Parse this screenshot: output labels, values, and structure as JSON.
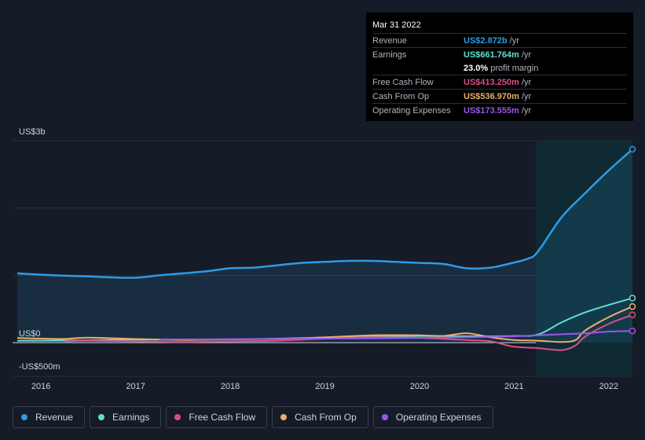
{
  "tooltip": {
    "date": "Mar 31 2022",
    "rows": [
      {
        "label": "Revenue",
        "value": "US$2.872b",
        "suffix": "/yr",
        "color": "#2f9ae4"
      },
      {
        "label": "Earnings",
        "value": "US$661.764m",
        "suffix": "/yr",
        "color": "#5ee0d1"
      },
      {
        "label": "",
        "value": "23.0%",
        "suffix": "profit margin",
        "color": "#ffffff"
      },
      {
        "label": "Free Cash Flow",
        "value": "US$413.250m",
        "suffix": "/yr",
        "color": "#d84f86"
      },
      {
        "label": "Cash From Op",
        "value": "US$536.970m",
        "suffix": "/yr",
        "color": "#e8b06b"
      },
      {
        "label": "Operating Expenses",
        "value": "US$173.555m",
        "suffix": "/yr",
        "color": "#9b56e8"
      }
    ]
  },
  "legend": [
    {
      "label": "Revenue",
      "color": "#2f9ae4"
    },
    {
      "label": "Earnings",
      "color": "#5ee0d1"
    },
    {
      "label": "Free Cash Flow",
      "color": "#d84f86"
    },
    {
      "label": "Cash From Op",
      "color": "#e8b06b"
    },
    {
      "label": "Operating Expenses",
      "color": "#9b56e8"
    }
  ],
  "chart_data": {
    "type": "line",
    "ylabels": {
      "top": "US$3b",
      "zero": "US$0",
      "bottom": "-US$500m"
    },
    "ylim": [
      -500,
      3000
    ],
    "xlim": [
      2015.7,
      2022.25
    ],
    "x_ticks": [
      "2016",
      "2017",
      "2018",
      "2019",
      "2020",
      "2021",
      "2022"
    ],
    "x_tick_values": [
      2016,
      2017,
      2018,
      2019,
      2020,
      2021,
      2022
    ],
    "forecast_start": 2021.23,
    "series": [
      {
        "name": "Revenue",
        "color": "#2f9ae4",
        "fill": true,
        "points": [
          [
            2015.75,
            1030
          ],
          [
            2016.0,
            1010
          ],
          [
            2016.25,
            995
          ],
          [
            2016.5,
            985
          ],
          [
            2016.75,
            970
          ],
          [
            2017.0,
            965
          ],
          [
            2017.25,
            1000
          ],
          [
            2017.5,
            1030
          ],
          [
            2017.75,
            1060
          ],
          [
            2018.0,
            1105
          ],
          [
            2018.25,
            1115
          ],
          [
            2018.5,
            1150
          ],
          [
            2018.75,
            1185
          ],
          [
            2019.0,
            1200
          ],
          [
            2019.25,
            1215
          ],
          [
            2019.5,
            1215
          ],
          [
            2019.75,
            1200
          ],
          [
            2020.0,
            1185
          ],
          [
            2020.25,
            1170
          ],
          [
            2020.5,
            1105
          ],
          [
            2020.75,
            1115
          ],
          [
            2021.0,
            1190
          ],
          [
            2021.15,
            1250
          ],
          [
            2021.25,
            1350
          ],
          [
            2021.5,
            1860
          ],
          [
            2021.75,
            2220
          ],
          [
            2022.0,
            2560
          ],
          [
            2022.25,
            2872
          ]
        ]
      },
      {
        "name": "Earnings",
        "color": "#5ee0d1",
        "points": [
          [
            2015.75,
            30
          ],
          [
            2016.0,
            30
          ],
          [
            2016.5,
            35
          ],
          [
            2017.0,
            45
          ],
          [
            2017.5,
            45
          ],
          [
            2018.0,
            50
          ],
          [
            2018.5,
            60
          ],
          [
            2019.0,
            75
          ],
          [
            2019.5,
            90
          ],
          [
            2020.0,
            100
          ],
          [
            2020.5,
            95
          ],
          [
            2021.0,
            100
          ],
          [
            2021.25,
            120
          ],
          [
            2021.5,
            300
          ],
          [
            2021.75,
            450
          ],
          [
            2022.0,
            560
          ],
          [
            2022.25,
            662
          ]
        ]
      },
      {
        "name": "Free Cash Flow",
        "color": "#d84f86",
        "points": [
          [
            2016.25,
            20
          ],
          [
            2016.5,
            30
          ],
          [
            2017.0,
            20
          ],
          [
            2017.5,
            10
          ],
          [
            2018.0,
            20
          ],
          [
            2018.5,
            30
          ],
          [
            2019.0,
            60
          ],
          [
            2019.5,
            80
          ],
          [
            2020.0,
            70
          ],
          [
            2020.5,
            40
          ],
          [
            2020.75,
            20
          ],
          [
            2021.0,
            -60
          ],
          [
            2021.25,
            -80
          ],
          [
            2021.5,
            -110
          ],
          [
            2021.65,
            -40
          ],
          [
            2021.75,
            90
          ],
          [
            2022.0,
            280
          ],
          [
            2022.25,
            413
          ]
        ]
      },
      {
        "name": "Cash From Op",
        "color": "#e8b06b",
        "points": [
          [
            2015.75,
            70
          ],
          [
            2016.0,
            60
          ],
          [
            2016.25,
            55
          ],
          [
            2016.5,
            75
          ],
          [
            2017.0,
            55
          ],
          [
            2017.5,
            40
          ],
          [
            2018.0,
            50
          ],
          [
            2018.5,
            55
          ],
          [
            2019.0,
            80
          ],
          [
            2019.5,
            110
          ],
          [
            2020.0,
            110
          ],
          [
            2020.25,
            100
          ],
          [
            2020.5,
            140
          ],
          [
            2020.75,
            80
          ],
          [
            2021.0,
            40
          ],
          [
            2021.25,
            30
          ],
          [
            2021.5,
            10
          ],
          [
            2021.65,
            40
          ],
          [
            2021.75,
            180
          ],
          [
            2022.0,
            380
          ],
          [
            2022.25,
            537
          ]
        ]
      },
      {
        "name": "Operating Expenses",
        "color": "#9b56e8",
        "points": [
          [
            2017.25,
            50
          ],
          [
            2017.5,
            50
          ],
          [
            2018.0,
            52
          ],
          [
            2018.5,
            55
          ],
          [
            2019.0,
            60
          ],
          [
            2019.5,
            65
          ],
          [
            2020.0,
            70
          ],
          [
            2020.5,
            80
          ],
          [
            2021.0,
            95
          ],
          [
            2021.25,
            110
          ],
          [
            2021.5,
            125
          ],
          [
            2021.75,
            140
          ],
          [
            2022.0,
            165
          ],
          [
            2022.25,
            174
          ]
        ]
      }
    ]
  }
}
